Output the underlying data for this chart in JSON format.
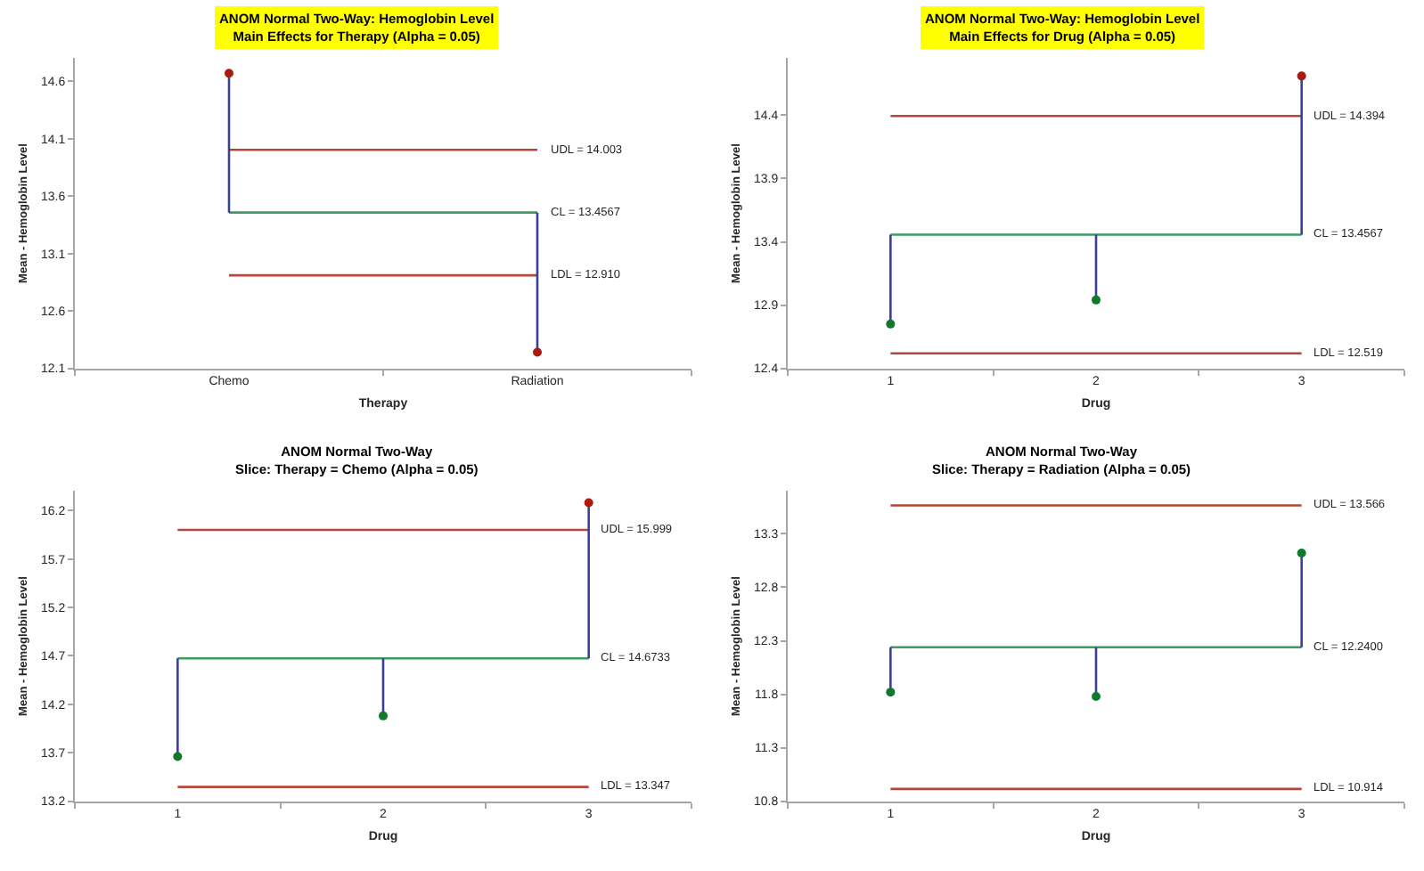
{
  "chart_data": [
    {
      "type": "scatter",
      "title": "ANOM Normal Two-Way: Hemoglobin Level\nMain Effects for Therapy (Alpha = 0.05)",
      "xlabel": "Therapy",
      "ylabel": "Mean - Hemoglobin Level",
      "categories": [
        "Chemo",
        "Radiation"
      ],
      "values": [
        14.67,
        12.24
      ],
      "colors": [
        "#a61c10",
        "#a61c10"
      ],
      "color": "#3b4190",
      "errors": [
        [
          13.4567,
          14.67
        ],
        [
          12.24,
          13.4567
        ]
      ],
      "marker": "circle",
      "ylim": [
        12.1,
        14.8
      ],
      "yticks": [
        12.1,
        12.6,
        13.1,
        13.6,
        14.1,
        14.6
      ],
      "ref_lines": [
        {
          "axis": "y",
          "value": 14.003,
          "label": "UDL = 14.003",
          "color": "#b5473a"
        },
        {
          "axis": "y",
          "value": 13.4567,
          "label": "CL = 13.4567",
          "color": "#3f9a60"
        },
        {
          "axis": "y",
          "value": 12.91,
          "label": "LDL = 12.910",
          "color": "#b5473a"
        }
      ]
    },
    {
      "type": "scatter",
      "title": "ANOM Normal Two-Way: Hemoglobin Level\nMain Effects for Drug (Alpha = 0.05)",
      "xlabel": "Drug",
      "ylabel": "Mean - Hemoglobin Level",
      "categories": [
        "1",
        "2",
        "3"
      ],
      "values": [
        12.75,
        12.94,
        14.71
      ],
      "colors": [
        "#0f7a2a",
        "#0f7a2a",
        "#a61c10"
      ],
      "color": "#3b4190",
      "errors": [
        [
          12.75,
          13.4567
        ],
        [
          12.94,
          13.4567
        ],
        [
          13.4567,
          14.71
        ]
      ],
      "marker": "circle",
      "ylim": [
        12.4,
        14.85
      ],
      "yticks": [
        12.4,
        12.9,
        13.4,
        13.9,
        14.4
      ],
      "ref_lines": [
        {
          "axis": "y",
          "value": 14.394,
          "label": "UDL = 14.394",
          "color": "#b5473a"
        },
        {
          "axis": "y",
          "value": 13.4567,
          "label": "CL = 13.4567",
          "color": "#3f9a60"
        },
        {
          "axis": "y",
          "value": 12.519,
          "label": "LDL = 12.519",
          "color": "#b5473a"
        }
      ]
    },
    {
      "type": "scatter",
      "title": "ANOM Normal Two-Way\nSlice: Therapy = Chemo (Alpha = 0.05)",
      "xlabel": "Drug",
      "ylabel": "Mean - Hemoglobin Level",
      "categories": [
        "1",
        "2",
        "3"
      ],
      "values": [
        13.66,
        14.08,
        16.28
      ],
      "colors": [
        "#0f7a2a",
        "#0f7a2a",
        "#a61c10"
      ],
      "color": "#3b4190",
      "errors": [
        [
          13.66,
          14.6733
        ],
        [
          14.08,
          14.6733
        ],
        [
          14.6733,
          16.28
        ]
      ],
      "marker": "circle",
      "ylim": [
        13.2,
        16.4
      ],
      "yticks": [
        13.2,
        13.7,
        14.2,
        14.7,
        15.2,
        15.7,
        16.2
      ],
      "ref_lines": [
        {
          "axis": "y",
          "value": 15.999,
          "label": "UDL = 15.999",
          "color": "#b5473a"
        },
        {
          "axis": "y",
          "value": 14.6733,
          "label": "CL = 14.6733",
          "color": "#3f9a60"
        },
        {
          "axis": "y",
          "value": 13.347,
          "label": "LDL = 13.347",
          "color": "#b5473a"
        }
      ]
    },
    {
      "type": "scatter",
      "title": "ANOM Normal Two-Way\nSlice: Therapy = Radiation (Alpha = 0.05)",
      "xlabel": "Drug",
      "ylabel": "Mean - Hemoglobin Level",
      "categories": [
        "1",
        "2",
        "3"
      ],
      "values": [
        11.82,
        11.78,
        13.12
      ],
      "colors": [
        "#0f7a2a",
        "#0f7a2a",
        "#0f7a2a"
      ],
      "color": "#3b4190",
      "errors": [
        [
          11.82,
          12.24
        ],
        [
          11.78,
          12.24
        ],
        [
          12.24,
          13.12
        ]
      ],
      "marker": "circle",
      "ylim": [
        10.8,
        13.7
      ],
      "yticks": [
        10.8,
        11.3,
        11.8,
        12.3,
        12.8,
        13.3
      ],
      "ref_lines": [
        {
          "axis": "y",
          "value": 13.566,
          "label": "UDL = 13.566",
          "color": "#b5473a"
        },
        {
          "axis": "y",
          "value": 12.24,
          "label": "CL = 12.2400",
          "color": "#3f9a60"
        },
        {
          "axis": "y",
          "value": 10.914,
          "label": "LDL = 10.914",
          "color": "#b5473a"
        }
      ]
    }
  ]
}
